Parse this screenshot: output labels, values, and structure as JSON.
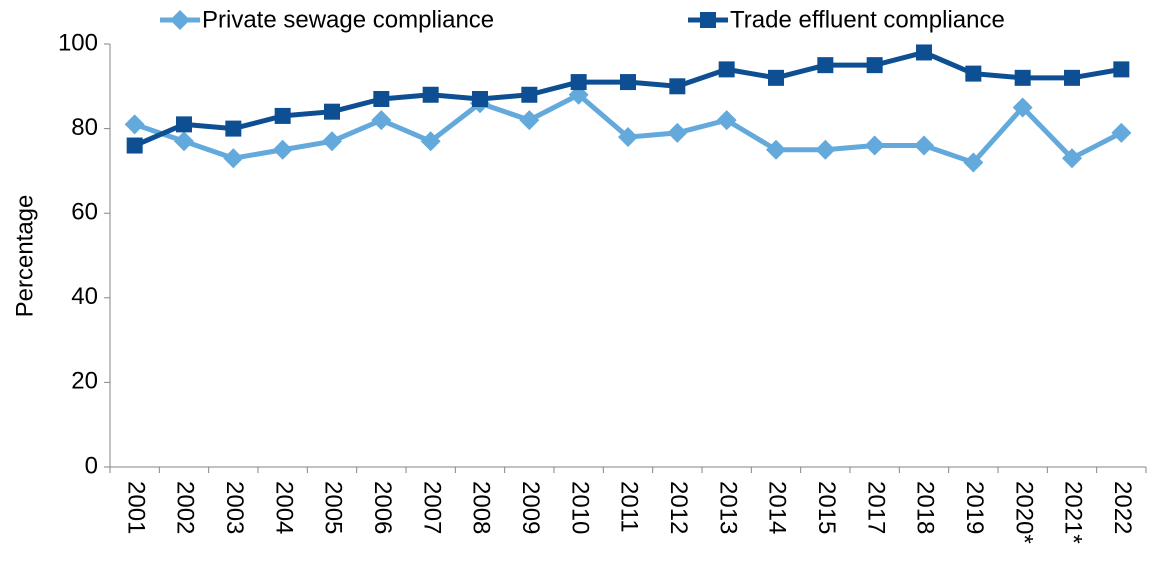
{
  "chart_data": {
    "type": "line",
    "y_label": "Percentage",
    "categories": [
      "2001",
      "2002",
      "2003",
      "2004",
      "2005",
      "2006",
      "2007",
      "2008",
      "2009",
      "2010",
      "2011",
      "2012",
      "2013",
      "2014",
      "2015",
      "2017",
      "2018",
      "2019",
      "2020*",
      "2021*",
      "2022"
    ],
    "series": [
      {
        "name": "Private sewage compliance",
        "color": "#63a9dc",
        "marker": "diamond",
        "values": [
          81,
          77,
          73,
          75,
          77,
          82,
          77,
          86,
          82,
          88,
          78,
          79,
          82,
          75,
          75,
          76,
          76,
          72,
          85,
          73,
          79
        ]
      },
      {
        "name": "Trade effluent compliance",
        "color": "#0d4f92",
        "marker": "square",
        "values": [
          76,
          81,
          80,
          83,
          84,
          87,
          88,
          87,
          88,
          91,
          91,
          90,
          94,
          92,
          95,
          95,
          98,
          93,
          92,
          92,
          94
        ]
      }
    ],
    "ylim": [
      0,
      100
    ],
    "yticks": [
      0,
      20,
      40,
      60,
      80,
      100
    ],
    "grid": false,
    "legend": "top"
  }
}
